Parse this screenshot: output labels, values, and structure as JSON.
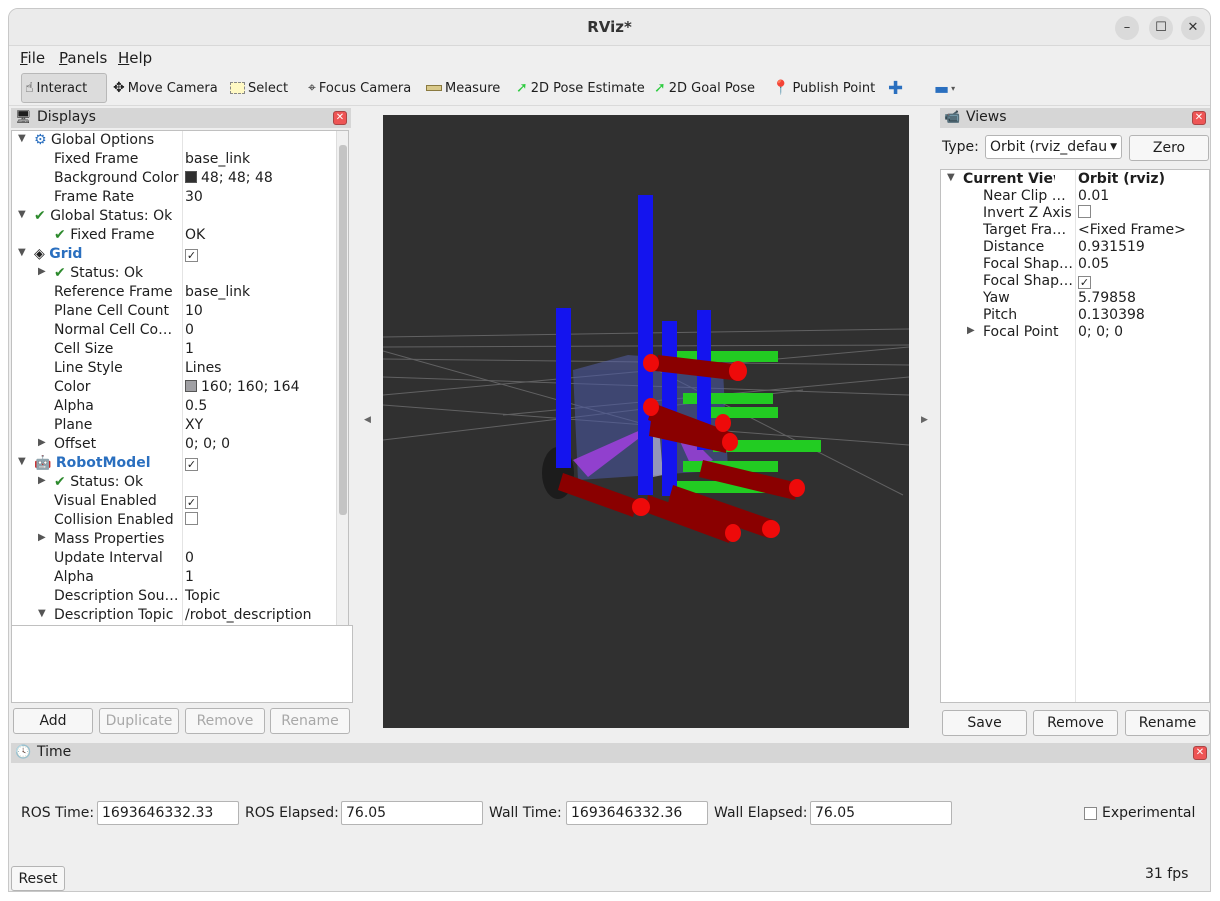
{
  "window": {
    "title": "RViz*"
  },
  "menu": [
    {
      "underline": "F",
      "rest": "ile"
    },
    {
      "underline": "P",
      "rest": "anels"
    },
    {
      "underline": "H",
      "rest": "elp"
    }
  ],
  "toolbar": {
    "interact": "Interact",
    "move_camera": "Move Camera",
    "select": "Select",
    "focus_camera": "Focus Camera",
    "measure": "Measure",
    "pose_estimate": "2D Pose Estimate",
    "goal_pose": "2D Goal Pose",
    "publish_point": "Publish Point"
  },
  "displays": {
    "title": "Displays",
    "rows": [
      {
        "key": "Global Options",
        "value": ""
      },
      {
        "key": "Fixed Frame",
        "value": "base_link"
      },
      {
        "key": "Background Color",
        "value": "48; 48; 48",
        "swatch": "#303030"
      },
      {
        "key": "Frame Rate",
        "value": "30"
      },
      {
        "key": "Global Status: Ok",
        "value": ""
      },
      {
        "key": "Fixed Frame",
        "value": "OK"
      },
      {
        "key": "Grid",
        "value": ""
      },
      {
        "key": "Status: Ok",
        "value": ""
      },
      {
        "key": "Reference Frame",
        "value": "base_link"
      },
      {
        "key": "Plane Cell Count",
        "value": "10"
      },
      {
        "key": "Normal Cell Co…",
        "value": "0"
      },
      {
        "key": "Cell Size",
        "value": "1"
      },
      {
        "key": "Line Style",
        "value": "Lines"
      },
      {
        "key": "Color",
        "value": "160; 160; 164",
        "swatch": "#a0a0a4"
      },
      {
        "key": "Alpha",
        "value": "0.5"
      },
      {
        "key": "Plane",
        "value": "XY"
      },
      {
        "key": "Offset",
        "value": "0; 0; 0"
      },
      {
        "key": "RobotModel",
        "value": ""
      },
      {
        "key": "Status: Ok",
        "value": ""
      },
      {
        "key": "Visual Enabled",
        "value": ""
      },
      {
        "key": "Collision Enabled",
        "value": ""
      },
      {
        "key": "Mass Properties",
        "value": ""
      },
      {
        "key": "Update Interval",
        "value": "0"
      },
      {
        "key": "Alpha",
        "value": "1"
      },
      {
        "key": "Description Sou…",
        "value": "Topic"
      },
      {
        "key": "Description Topic",
        "value": "/robot_description"
      }
    ],
    "buttons": {
      "add": "Add",
      "duplicate": "Duplicate",
      "remove": "Remove",
      "rename": "Rename"
    }
  },
  "views": {
    "title": "Views",
    "type_label": "Type:",
    "type_value": "Orbit (rviz_defau",
    "zero_label": "Zero",
    "current_view_label": "Current View",
    "current_view_value": "Orbit (rviz)",
    "rows": [
      {
        "key": "Near Clip …",
        "value": "0.01"
      },
      {
        "key": "Invert Z Axis",
        "value": ""
      },
      {
        "key": "Target Fra…",
        "value": "<Fixed Frame>"
      },
      {
        "key": "Distance",
        "value": "0.931519"
      },
      {
        "key": "Focal Shap…",
        "value": "0.05"
      },
      {
        "key": "Focal Shap…",
        "value": ""
      },
      {
        "key": "Yaw",
        "value": "5.79858"
      },
      {
        "key": "Pitch",
        "value": "0.130398"
      },
      {
        "key": "Focal Point",
        "value": "0; 0; 0"
      }
    ],
    "buttons": {
      "save": "Save",
      "remove": "Remove",
      "rename": "Rename"
    }
  },
  "time": {
    "title": "Time",
    "ros_time_label": "ROS Time:",
    "ros_time": "1693646332.33",
    "ros_elapsed_label": "ROS Elapsed:",
    "ros_elapsed": "76.05",
    "wall_time_label": "Wall Time:",
    "wall_time": "1693646332.36",
    "wall_elapsed_label": "Wall Elapsed:",
    "wall_elapsed": "76.05",
    "experimental_label": "Experimental",
    "reset_label": "Reset",
    "fps": "31 fps"
  }
}
